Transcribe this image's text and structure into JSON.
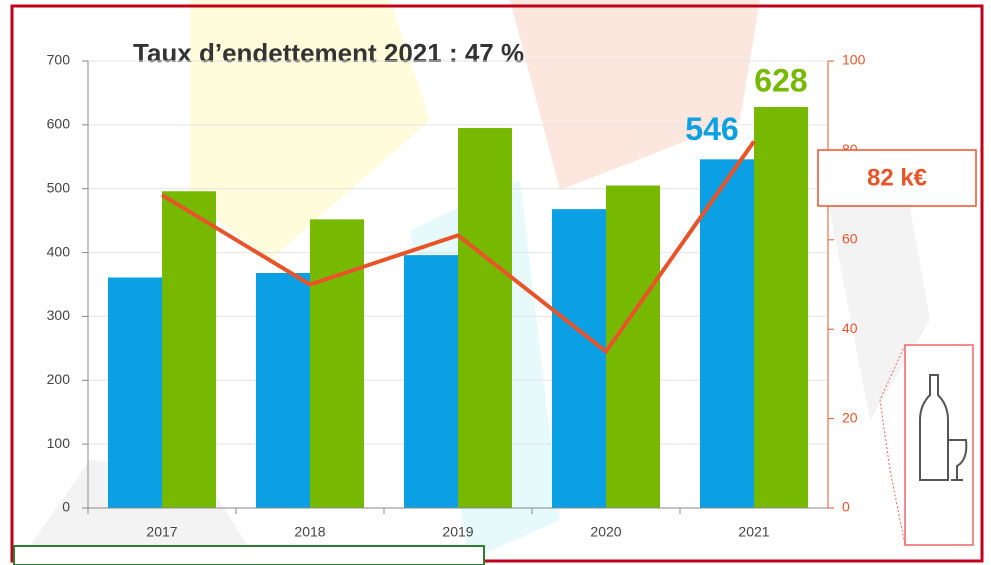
{
  "chart_data": {
    "type": "bar_line",
    "title": "Taux d’endettement 2021 : 47 %",
    "categories": [
      "2017",
      "2018",
      "2019",
      "2020",
      "2021"
    ],
    "series": [
      {
        "color": "#0b9fe3",
        "values": [
          361,
          368,
          396,
          468,
          546
        ],
        "value_labels": [
          null,
          null,
          null,
          null,
          "546"
        ]
      },
      {
        "color": "#76b900",
        "values": [
          496,
          452,
          595,
          505,
          628
        ],
        "value_labels": [
          null,
          null,
          null,
          null,
          "628"
        ]
      },
      {
        "type": "line",
        "axis": "y2",
        "color": "#e8542a",
        "values": [
          70,
          50,
          61,
          35,
          82
        ],
        "value_labels": [
          null,
          null,
          null,
          null,
          "82 k€"
        ]
      }
    ],
    "ylim": [
      0,
      700
    ],
    "yticks": [
      0,
      100,
      200,
      300,
      400,
      500,
      600,
      700
    ],
    "y2lim": [
      0,
      100
    ],
    "y2ticks": [
      0,
      20,
      40,
      60,
      80,
      100
    ],
    "grid": true
  }
}
